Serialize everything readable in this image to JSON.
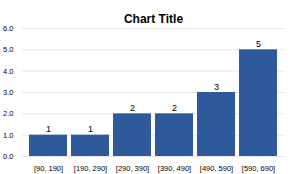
{
  "chart_data": {
    "type": "bar",
    "title": "Chart Title",
    "categories": [
      "[90, 190]",
      "[190, 290]",
      "[290, 390]",
      "[390, 490]",
      "[490, 590]",
      "[590, 690]"
    ],
    "values": [
      1,
      1,
      2,
      2,
      3,
      5
    ],
    "color": "#2E5A9C",
    "ylim": [
      0,
      6
    ],
    "yticks": [
      0,
      1,
      2,
      3,
      4,
      5,
      6
    ],
    "grid": true,
    "data_labels": true
  }
}
